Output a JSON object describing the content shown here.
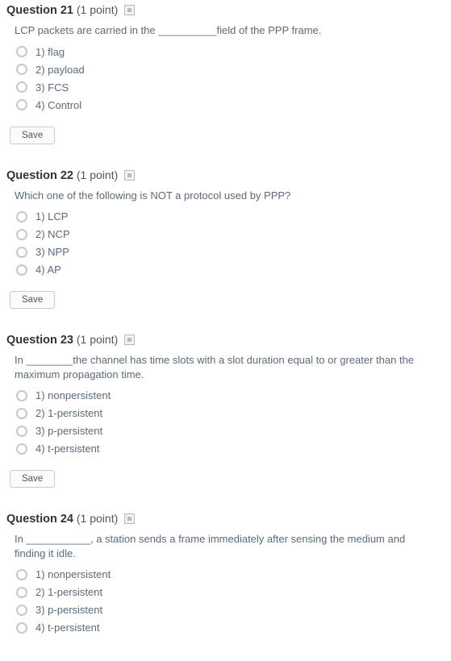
{
  "save_label": "Save",
  "points_format_prefix": "(",
  "points_format_suffix": " point)",
  "questions": [
    {
      "number": "Question 21",
      "points": "1",
      "text": "LCP packets are carried in the __________field of the PPP frame.",
      "options": [
        "1)  flag",
        "2)  payload",
        "3)  FCS",
        "4)  Control"
      ],
      "show_save": true
    },
    {
      "number": "Question 22",
      "points": "1",
      "text": "Which one of the following is NOT a protocol used by PPP?",
      "options": [
        "1)  LCP",
        "2)  NCP",
        "3)  NPP",
        "4)  AP"
      ],
      "show_save": true
    },
    {
      "number": "Question 23",
      "points": "1",
      "text": "In ________the channel has time slots with a slot duration equal to or greater than the maximum propagation time.",
      "options": [
        "1)  nonpersistent",
        "2)  1-persistent",
        "3)  p-persistent",
        "4)  t-persistent"
      ],
      "show_save": true
    },
    {
      "number": "Question 24",
      "points": "1",
      "text": "In ___________, a station sends a frame immediately after sensing the medium and finding it idle.",
      "options": [
        "1)  nonpersistent",
        "2)  1-persistent",
        "3)  p-persistent",
        "4)  t-persistent"
      ],
      "show_save": false
    }
  ]
}
